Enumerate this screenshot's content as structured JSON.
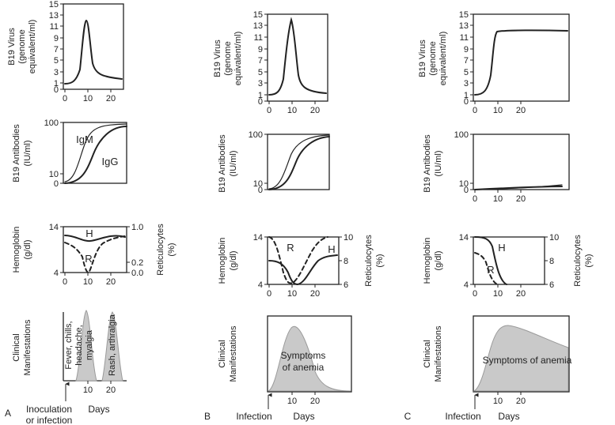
{
  "panels": {
    "A": {
      "letter": "A",
      "virus_label": [
        "B19 Virus",
        "(genome",
        "equivalent/ml)"
      ],
      "virus_y_ticks": [
        "15",
        "13",
        "11",
        "9",
        "7",
        "5",
        "3",
        "1",
        "0"
      ],
      "virus_x_ticks": [
        "0",
        "10",
        "20"
      ],
      "antibody_label": [
        "B19 Antibodies",
        "(IU/ml)"
      ],
      "antibody_y_ticks": [
        "100",
        "10",
        "0"
      ],
      "antibody_curve_labels": [
        "IgM",
        "IgG"
      ],
      "hemo_label": [
        "Hemoglobin",
        "(g/dl)"
      ],
      "hemo_y_ticks": [
        "14",
        "4"
      ],
      "retic_label": [
        "Reticulocytes",
        "(%)"
      ],
      "retic_ticks": [
        "1.0",
        "0.2",
        "0.0"
      ],
      "hemo_x_ticks": [
        "0",
        "10",
        "20"
      ],
      "hemo_curve_labels": [
        "H",
        "R"
      ],
      "clinical_label": [
        "Clinical",
        "Manifestations"
      ],
      "symptom_text_1": [
        "Fever, chills,",
        "headache,",
        "myalgia"
      ],
      "symptom_text_2": [
        "Rash, arthralgia"
      ],
      "clinical_x_ticks": [
        "10",
        "20"
      ],
      "event_label": [
        "Inoculation",
        "or infection"
      ],
      "days_label": "Days"
    },
    "B": {
      "letter": "B",
      "virus_label": [
        "B19 Virus",
        "(genome",
        "equivalent/ml)"
      ],
      "virus_y_ticks": [
        "15",
        "13",
        "11",
        "9",
        "7",
        "5",
        "3",
        "1",
        "0"
      ],
      "virus_x_ticks": [
        "0",
        "10",
        "20"
      ],
      "antibody_label": [
        "B19 Antibodies",
        "(IU/ml)"
      ],
      "antibody_y_ticks": [
        "100",
        "10",
        "0"
      ],
      "hemo_label": [
        "Hemoglobin",
        "(g/dl)"
      ],
      "hemo_y_ticks": [
        "14",
        "4"
      ],
      "retic_label": [
        "Reticulocytes",
        "(%)"
      ],
      "retic_ticks": [
        "10",
        "8",
        "6"
      ],
      "hemo_x_ticks": [
        "0",
        "10",
        "20"
      ],
      "hemo_curve_labels": [
        "R",
        "H"
      ],
      "clinical_label": [
        "Clinical",
        "Manifestations"
      ],
      "symptom_text": [
        "Symptoms",
        "of anemia"
      ],
      "clinical_x_ticks": [
        "10",
        "20"
      ],
      "event_label": [
        "Infection"
      ],
      "days_label": "Days"
    },
    "C": {
      "letter": "C",
      "virus_label": [
        "B19 Virus",
        "(genome",
        "equivalent/ml)"
      ],
      "virus_y_ticks": [
        "15",
        "13",
        "11",
        "9",
        "7",
        "5",
        "3",
        "1",
        "0"
      ],
      "virus_x_ticks": [
        "0",
        "10",
        "20"
      ],
      "antibody_label": [
        "B19 Antibodies",
        "(IU/ml)"
      ],
      "antibody_y_ticks": [
        "100",
        "10",
        "0"
      ],
      "antibody_x_ticks": [
        "0",
        "10",
        "20"
      ],
      "hemo_label": [
        "Hemoglobin",
        "(g/dl)"
      ],
      "hemo_y_ticks": [
        "14",
        "4"
      ],
      "retic_label": [
        "Reticulocytes",
        "(%)"
      ],
      "retic_ticks": [
        "10",
        "8",
        "6"
      ],
      "hemo_x_ticks": [
        "0",
        "10",
        "20"
      ],
      "hemo_curve_labels": [
        "H",
        "R"
      ],
      "clinical_label": [
        "Clinical",
        "Manifestations"
      ],
      "symptom_text": [
        "Symptoms of anemia"
      ],
      "clinical_x_ticks": [
        "10",
        "20"
      ],
      "event_label": [
        "Infection"
      ],
      "days_label": "Days"
    }
  }
}
